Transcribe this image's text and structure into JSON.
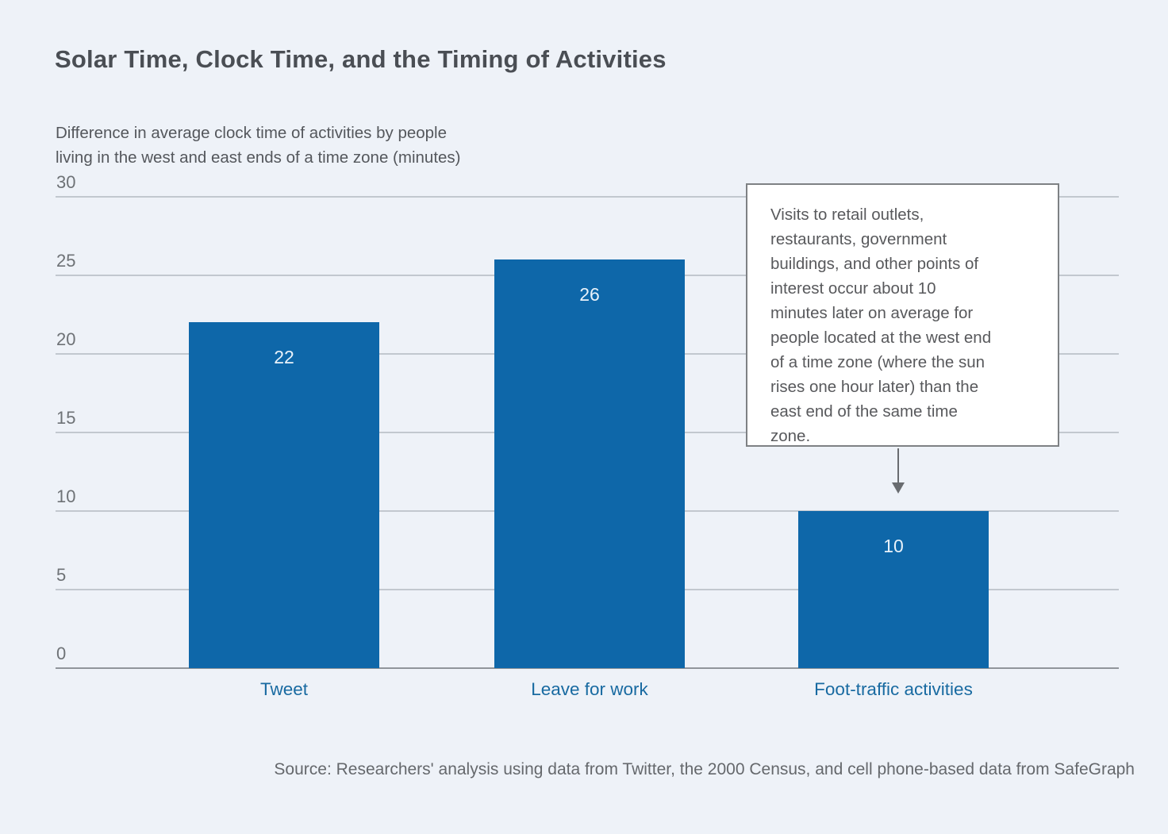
{
  "chart_data": {
    "type": "bar",
    "title": "Solar Time, Clock Time, and the Timing of Activities",
    "subtitle": "Difference in average clock time of activities by people\nliving in the west and east ends of a time zone (minutes)",
    "categories": [
      "Tweet",
      "Leave for work",
      "Foot-traffic activities"
    ],
    "values": [
      22,
      26,
      10
    ],
    "ylim": [
      0,
      30
    ],
    "yticks": [
      0,
      5,
      10,
      15,
      20,
      25,
      30
    ],
    "grid": "horizontal",
    "legend": "none",
    "bar_color": "#0e67a9",
    "value_label_color": "#e9f2fa",
    "category_label_color": "#186aa1",
    "background_color": "#eef2f8",
    "annotation": {
      "text": "Visits to retail outlets,\nrestaurants, government\nbuildings, and other points of\ninterest occur about 10\nminutes later on average for\npeople located at the west end\nof a time zone (where the sun\nrises one hour later) than the\neast end of the same time\nzone.",
      "points_to": "Foot-traffic activities"
    },
    "source": "Source: Researchers' analysis using data from Twitter, the 2000 Census, and cell phone-based data from SafeGraph"
  }
}
